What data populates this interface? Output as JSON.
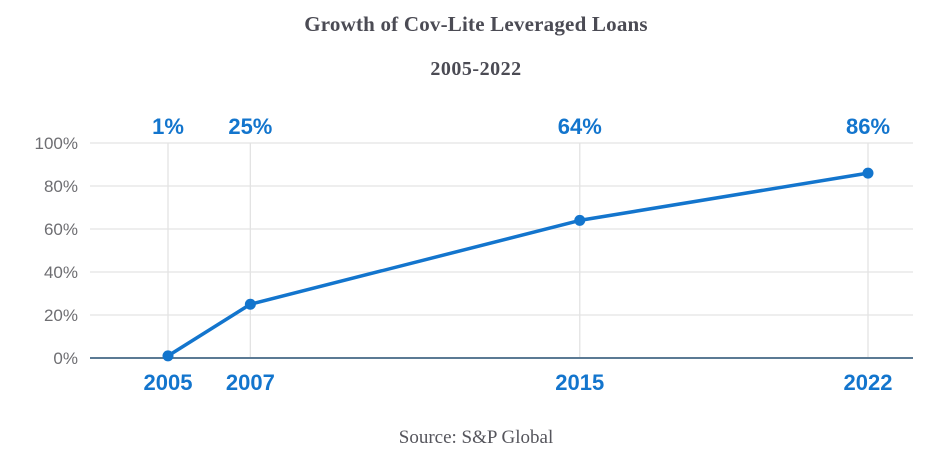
{
  "header": {
    "title": "Growth of Cov-Lite Leveraged Loans",
    "subtitle": "2005-2022"
  },
  "footer": {
    "source": "Source: S&P Global"
  },
  "colors": {
    "accent_blue": "#1375cd",
    "title_gray": "#4b4b54",
    "source_gray": "#55555c",
    "y_label_gray": "#6e6e72",
    "grid_gray": "#e3e3e3",
    "axis_slate": "#5b7a94"
  },
  "chart_data": {
    "type": "line",
    "title": "Growth of Cov-Lite Leveraged Loans",
    "subtitle": "2005-2022",
    "x": [
      2005,
      2007,
      2015,
      2022
    ],
    "values": [
      1,
      25,
      64,
      86
    ],
    "point_labels": [
      "1%",
      "25%",
      "64%",
      "86%"
    ],
    "x_tick_labels": [
      "2005",
      "2007",
      "2015",
      "2022"
    ],
    "y_ticks": [
      0,
      20,
      40,
      60,
      80,
      100
    ],
    "y_tick_labels": [
      "0%",
      "20%",
      "40%",
      "60%",
      "80%",
      "100%"
    ],
    "xlabel": "",
    "ylabel": "",
    "ylim": [
      0,
      100
    ],
    "xlim": [
      2005,
      2022
    ],
    "grid": true,
    "legend": "none",
    "source": "Source: S&P Global"
  }
}
